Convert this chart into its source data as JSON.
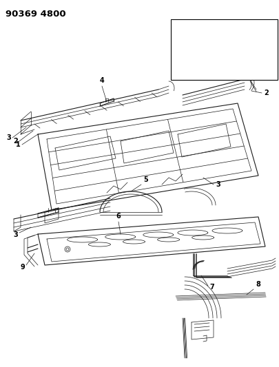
{
  "title": "90369 4800",
  "bg_color": "#ffffff",
  "line_color": "#1a1a1a",
  "label_color": "#000000",
  "label_fontsize": 7.0,
  "title_fontsize": 9.5,
  "fig_width": 4.06,
  "fig_height": 5.33,
  "dpi": 100
}
